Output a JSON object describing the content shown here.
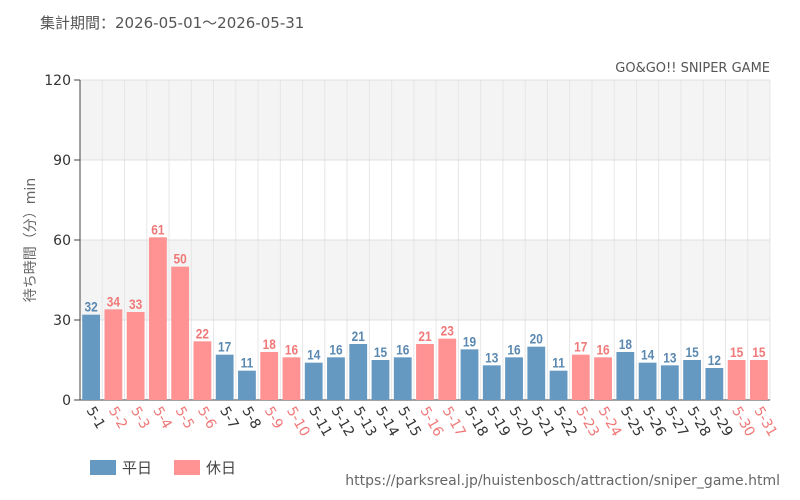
{
  "header": {
    "period": "集計期間：2026-05-01～2026-05-31"
  },
  "source_url": "https://parksreal.jp/huistenbosch/attraction/sniper_game.html",
  "colors": {
    "weekday": "#6699c2",
    "holiday": "#ff9292",
    "weekday_label": "#5a88b0",
    "holiday_label": "#f07878"
  },
  "chart_data": {
    "type": "bar",
    "title": "GO&GO!! SNIPER GAME",
    "ylabel": "待ち時間（分）min",
    "xlabel": "",
    "ylim": [
      0,
      120
    ],
    "yticks": [
      0,
      30,
      60,
      90,
      120
    ],
    "grid": true,
    "legend_position": "bottom-left",
    "categories": [
      "5-1",
      "5-2",
      "5-3",
      "5-4",
      "5-5",
      "5-6",
      "5-7",
      "5-8",
      "5-9",
      "5-10",
      "5-11",
      "5-12",
      "5-13",
      "5-14",
      "5-15",
      "5-16",
      "5-17",
      "5-18",
      "5-19",
      "5-20",
      "5-21",
      "5-22",
      "5-23",
      "5-24",
      "5-25",
      "5-26",
      "5-27",
      "5-28",
      "5-29",
      "5-30",
      "5-31"
    ],
    "values": [
      32,
      34,
      33,
      61,
      50,
      22,
      17,
      11,
      18,
      16,
      14,
      16,
      21,
      15,
      16,
      21,
      23,
      19,
      13,
      16,
      20,
      11,
      17,
      16,
      18,
      14,
      13,
      15,
      12,
      15,
      15
    ],
    "day_type": [
      "weekday",
      "holiday",
      "holiday",
      "holiday",
      "holiday",
      "holiday",
      "weekday",
      "weekday",
      "holiday",
      "holiday",
      "weekday",
      "weekday",
      "weekday",
      "weekday",
      "weekday",
      "holiday",
      "holiday",
      "weekday",
      "weekday",
      "weekday",
      "weekday",
      "weekday",
      "holiday",
      "holiday",
      "weekday",
      "weekday",
      "weekday",
      "weekday",
      "weekday",
      "holiday",
      "holiday"
    ],
    "legend": [
      {
        "key": "weekday",
        "label": "平日"
      },
      {
        "key": "holiday",
        "label": "休日"
      }
    ]
  }
}
